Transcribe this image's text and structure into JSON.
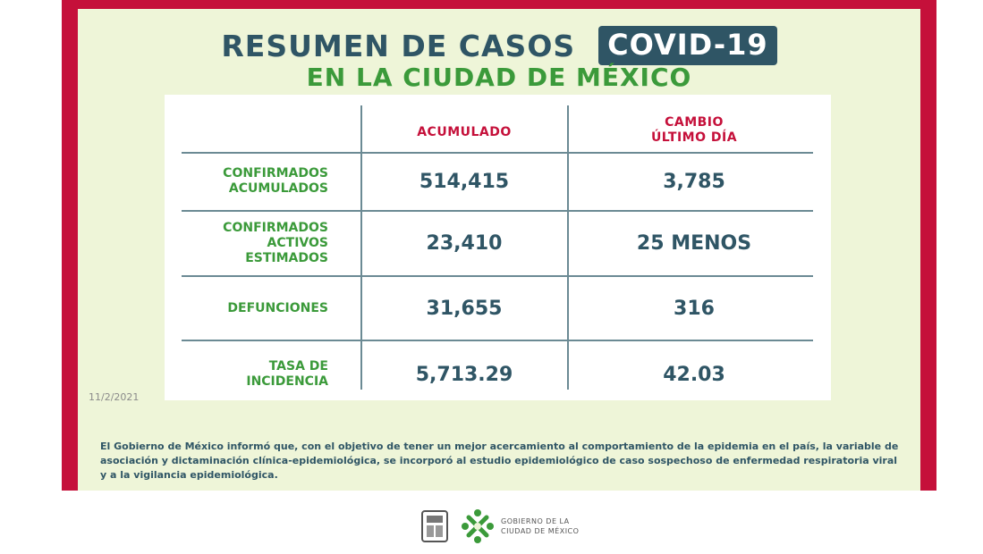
{
  "header": {
    "title": "RESUMEN DE CASOS",
    "badge": "COVID-19",
    "subtitle": "EN LA CIUDAD DE MÉXICO"
  },
  "table": {
    "columns": [
      "ACUMULADO",
      "CAMBIO",
      "ÚLTIMO DÍA"
    ],
    "rows": [
      {
        "label1": "CONFIRMADOS",
        "label2": "ACUMULADOS",
        "label3": "",
        "acumulado": "514,415",
        "cambio": "3,785"
      },
      {
        "label1": "CONFIRMADOS",
        "label2": "ACTIVOS",
        "label3": "ESTIMADOS",
        "acumulado": "23,410",
        "cambio": "25 MENOS"
      },
      {
        "label1": "DEFUNCIONES",
        "label2": "",
        "label3": "",
        "acumulado": "31,655",
        "cambio": "316"
      },
      {
        "label1": "TASA DE",
        "label2": "INCIDENCIA",
        "label3": "",
        "acumulado": "5,713.29",
        "cambio": "42.03"
      }
    ]
  },
  "date": "11/2/2021",
  "note": "El Gobierno de México informó que, con el objetivo de tener un mejor acercamiento al comportamiento de la epidemia en el país, la variable de asociación y dictaminación clínica-epidemiológica, se incorporó al estudio epidemiológico de caso sospechoso de enfermedad respiratoria viral y a la vigilancia epidemiológica.",
  "footer": {
    "line1": "GOBIERNO DE LA",
    "line2": "CIUDAD DE MÉXICO"
  },
  "colors": {
    "frame": "#c5103a",
    "panel": "#eef5d8",
    "title": "#2f5565",
    "green": "#3b9a3a"
  }
}
